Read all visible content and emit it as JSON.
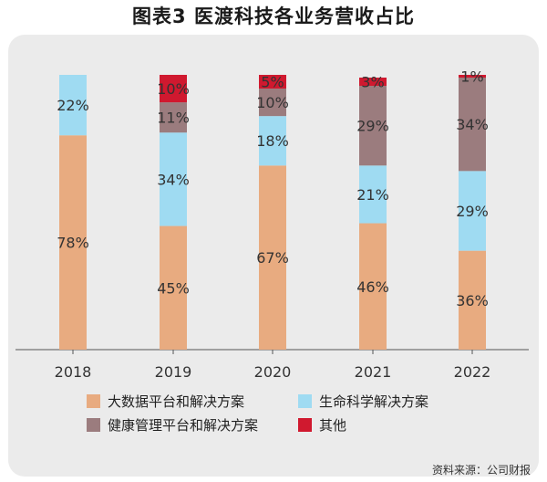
{
  "title": "图表3 医渡科技各业务营收占比",
  "source": "资料来源：公司财报",
  "colors": {
    "big_data": "#e8ab80",
    "life_science": "#9fdbf2",
    "health_mgmt": "#9b7c7e",
    "other": "#d0192f"
  },
  "legend": [
    {
      "name": "大数据平台和解决方案",
      "color": "#e8ab80"
    },
    {
      "name": "生命科学解决方案",
      "color": "#9fdbf2"
    },
    {
      "name": "健康管理平台和解决方案",
      "color": "#9b7c7e"
    },
    {
      "name": "其他",
      "color": "#d0192f"
    }
  ],
  "chart_data": {
    "type": "bar",
    "stacked": true,
    "unit": "%",
    "categories": [
      "2018",
      "2019",
      "2020",
      "2021",
      "2022"
    ],
    "ylim": [
      0,
      100
    ],
    "legend_position": "bottom",
    "series": [
      {
        "name": "大数据平台和解决方案",
        "color": "#e8ab80",
        "values": [
          78,
          45,
          67,
          46,
          36
        ]
      },
      {
        "name": "生命科学解决方案",
        "color": "#9fdbf2",
        "values": [
          22,
          34,
          18,
          21,
          29
        ]
      },
      {
        "name": "健康管理平台和解决方案",
        "color": "#9b7c7e",
        "values": [
          null,
          11,
          10,
          29,
          34
        ]
      },
      {
        "name": "其他",
        "color": "#d0192f",
        "values": [
          null,
          10,
          5,
          3,
          1
        ]
      }
    ]
  }
}
